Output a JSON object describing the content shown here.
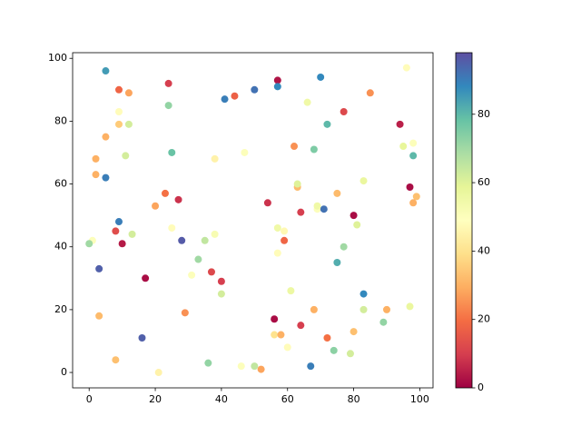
{
  "chart_data": {
    "type": "scatter",
    "x": [
      5,
      9,
      12,
      24,
      41,
      44,
      50,
      57,
      57,
      70,
      96,
      85,
      9,
      9,
      12,
      24,
      66,
      77,
      72,
      94,
      5,
      95,
      98,
      2,
      11,
      25,
      38,
      47,
      62,
      68,
      98,
      2,
      5,
      63,
      63,
      83,
      97,
      99,
      98,
      23,
      27,
      54,
      75,
      69,
      69,
      71,
      20,
      64,
      80,
      81,
      9,
      1,
      0,
      8,
      13,
      10,
      25,
      28,
      35,
      38,
      57,
      59,
      59,
      57,
      77,
      3,
      17,
      31,
      33,
      37,
      40,
      40,
      61,
      75,
      83,
      3,
      29,
      68,
      83,
      90,
      97,
      89,
      56,
      64,
      16,
      56,
      58,
      72,
      80,
      60,
      74,
      79,
      8,
      36,
      21,
      46,
      50,
      52,
      67
    ],
    "y": [
      96,
      90,
      89,
      92,
      87,
      88,
      90,
      93,
      91,
      94,
      97,
      89,
      83,
      79,
      79,
      85,
      86,
      83,
      79,
      79,
      75,
      72,
      73,
      68,
      69,
      70,
      68,
      70,
      72,
      71,
      69,
      63,
      62,
      59,
      60,
      61,
      59,
      56,
      54,
      57,
      55,
      54,
      57,
      52,
      53,
      52,
      53,
      51,
      50,
      47,
      48,
      42,
      41,
      45,
      44,
      41,
      46,
      42,
      42,
      44,
      46,
      45,
      42,
      38,
      40,
      33,
      30,
      31,
      36,
      32,
      29,
      25,
      26,
      35,
      25,
      18,
      19,
      20,
      20,
      20,
      21,
      16,
      17,
      15,
      11,
      12,
      12,
      11,
      13,
      8,
      7,
      6,
      4,
      3,
      0,
      2,
      2,
      1,
      2
    ],
    "c": [
      85,
      18,
      28,
      10,
      90,
      17,
      92,
      3,
      88,
      88,
      48,
      25,
      48,
      35,
      62,
      72,
      55,
      12,
      80,
      5,
      30,
      58,
      50,
      30,
      62,
      78,
      45,
      50,
      25,
      75,
      80,
      30,
      90,
      32,
      60,
      57,
      2,
      33,
      30,
      20,
      8,
      8,
      32,
      50,
      55,
      92,
      28,
      10,
      2,
      60,
      90,
      50,
      70,
      13,
      62,
      4,
      48,
      96,
      65,
      52,
      55,
      47,
      18,
      48,
      70,
      95,
      2,
      50,
      70,
      12,
      10,
      62,
      56,
      82,
      88,
      32,
      25,
      30,
      62,
      30,
      57,
      72,
      2,
      10,
      95,
      40,
      30,
      20,
      33,
      48,
      73,
      62,
      33,
      72,
      45,
      50,
      65,
      28,
      90
    ],
    "colormap_colors": [
      "#9e0142",
      "#d53e4f",
      "#f46d43",
      "#fdae61",
      "#fee08b",
      "#ffffbf",
      "#e6f598",
      "#abdda4",
      "#66c2a5",
      "#3288bd",
      "#5e4fa2"
    ],
    "clim": [
      0,
      98
    ],
    "cticks": [
      0,
      20,
      40,
      60,
      80
    ],
    "xlim": [
      -5,
      104
    ],
    "xticks": [
      0,
      20,
      40,
      60,
      80,
      100
    ],
    "ylim": [
      -4.9,
      101.8
    ],
    "yticks": [
      0,
      20,
      40,
      60,
      80,
      100
    ]
  }
}
